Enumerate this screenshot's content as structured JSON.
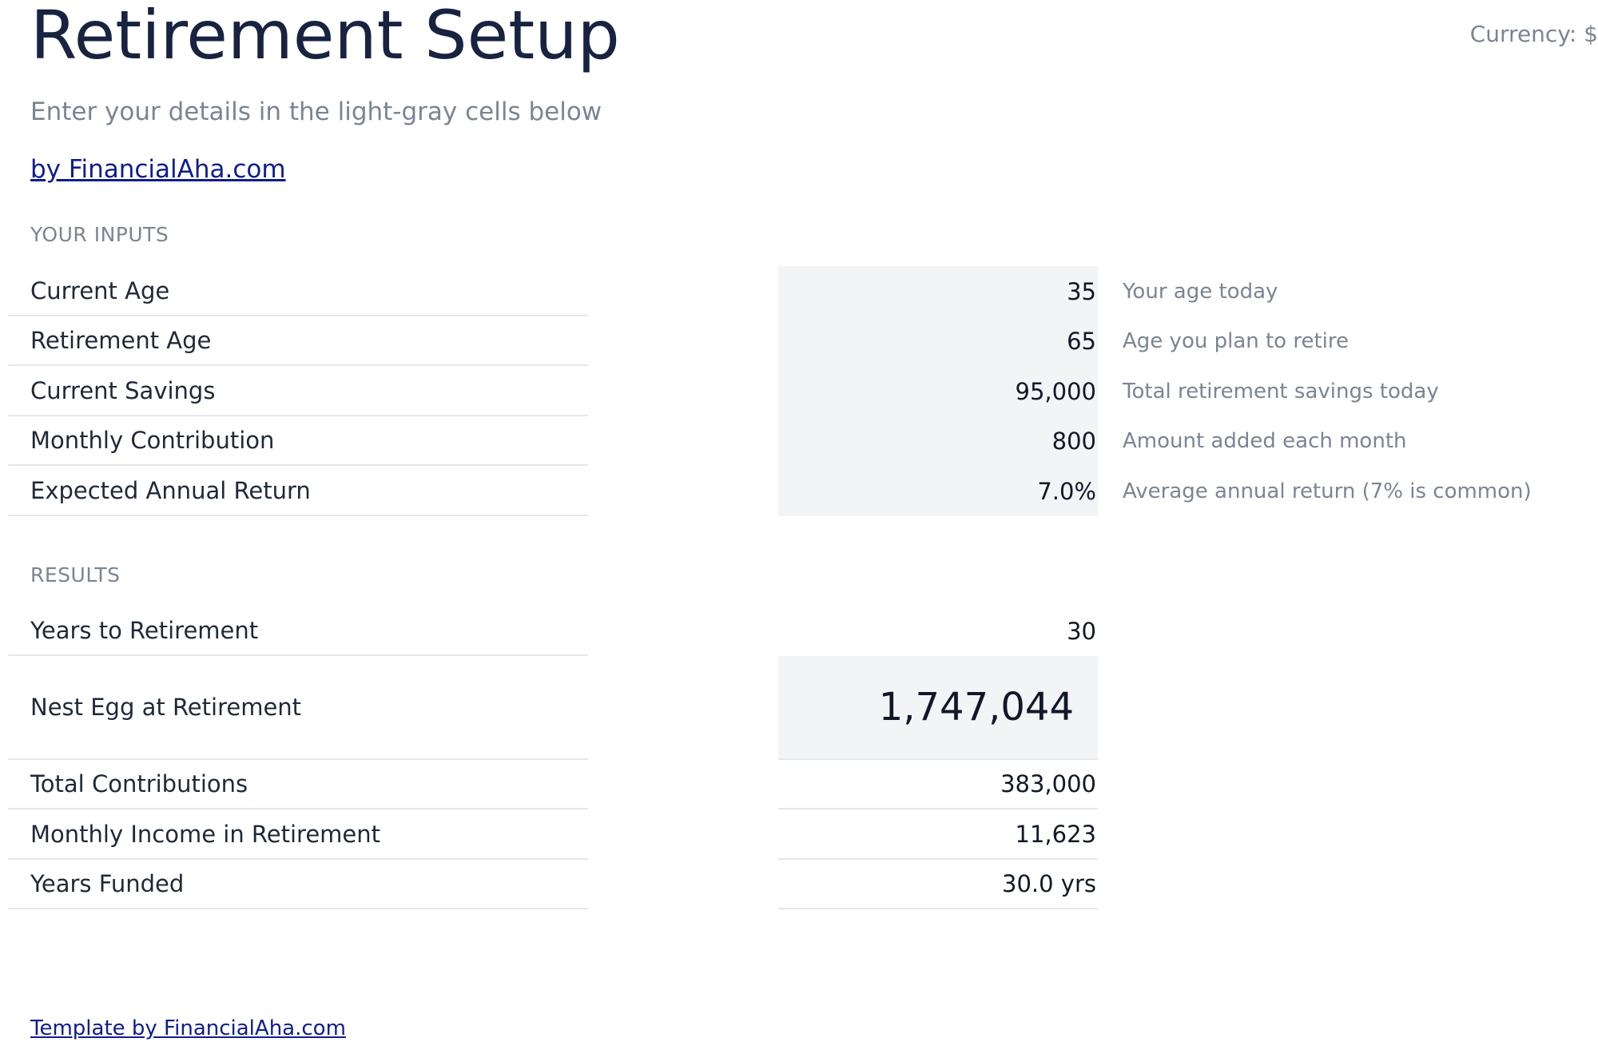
{
  "header": {
    "title": "Retirement Setup",
    "currency": "Currency: $",
    "subtitle": "Enter your details in the light-gray cells below",
    "byline": "by FinancialAha.com"
  },
  "inputs": {
    "section_title": "YOUR INPUTS",
    "rows": [
      {
        "label": "Current Age",
        "value": "35",
        "hint": "Your age today"
      },
      {
        "label": "Retirement Age",
        "value": "65",
        "hint": "Age you plan to retire"
      },
      {
        "label": "Current Savings",
        "value": "95,000",
        "hint": "Total retirement savings today"
      },
      {
        "label": "Monthly Contribution",
        "value": "800",
        "hint": "Amount added each month"
      },
      {
        "label": "Expected Annual Return",
        "value": "7.0%",
        "hint": "Average annual return (7% is common)"
      }
    ]
  },
  "results": {
    "section_title": "RESULTS",
    "rows": [
      {
        "label": "Years to Retirement",
        "value": "30"
      },
      {
        "label": "Nest Egg at Retirement",
        "value": "1,747,044"
      },
      {
        "label": "Total Contributions",
        "value": "383,000"
      },
      {
        "label": "Monthly Income in Retirement",
        "value": "11,623"
      },
      {
        "label": "Years Funded",
        "value": "30.0 yrs"
      }
    ]
  },
  "footer": {
    "link": "Template by FinancialAha.com"
  },
  "colors": {
    "title": "#172340",
    "muted": "#7b8494",
    "link": "#0f1d8c",
    "input_cell_bg": "#f3f4f6",
    "divider": "#e5e7eb"
  }
}
